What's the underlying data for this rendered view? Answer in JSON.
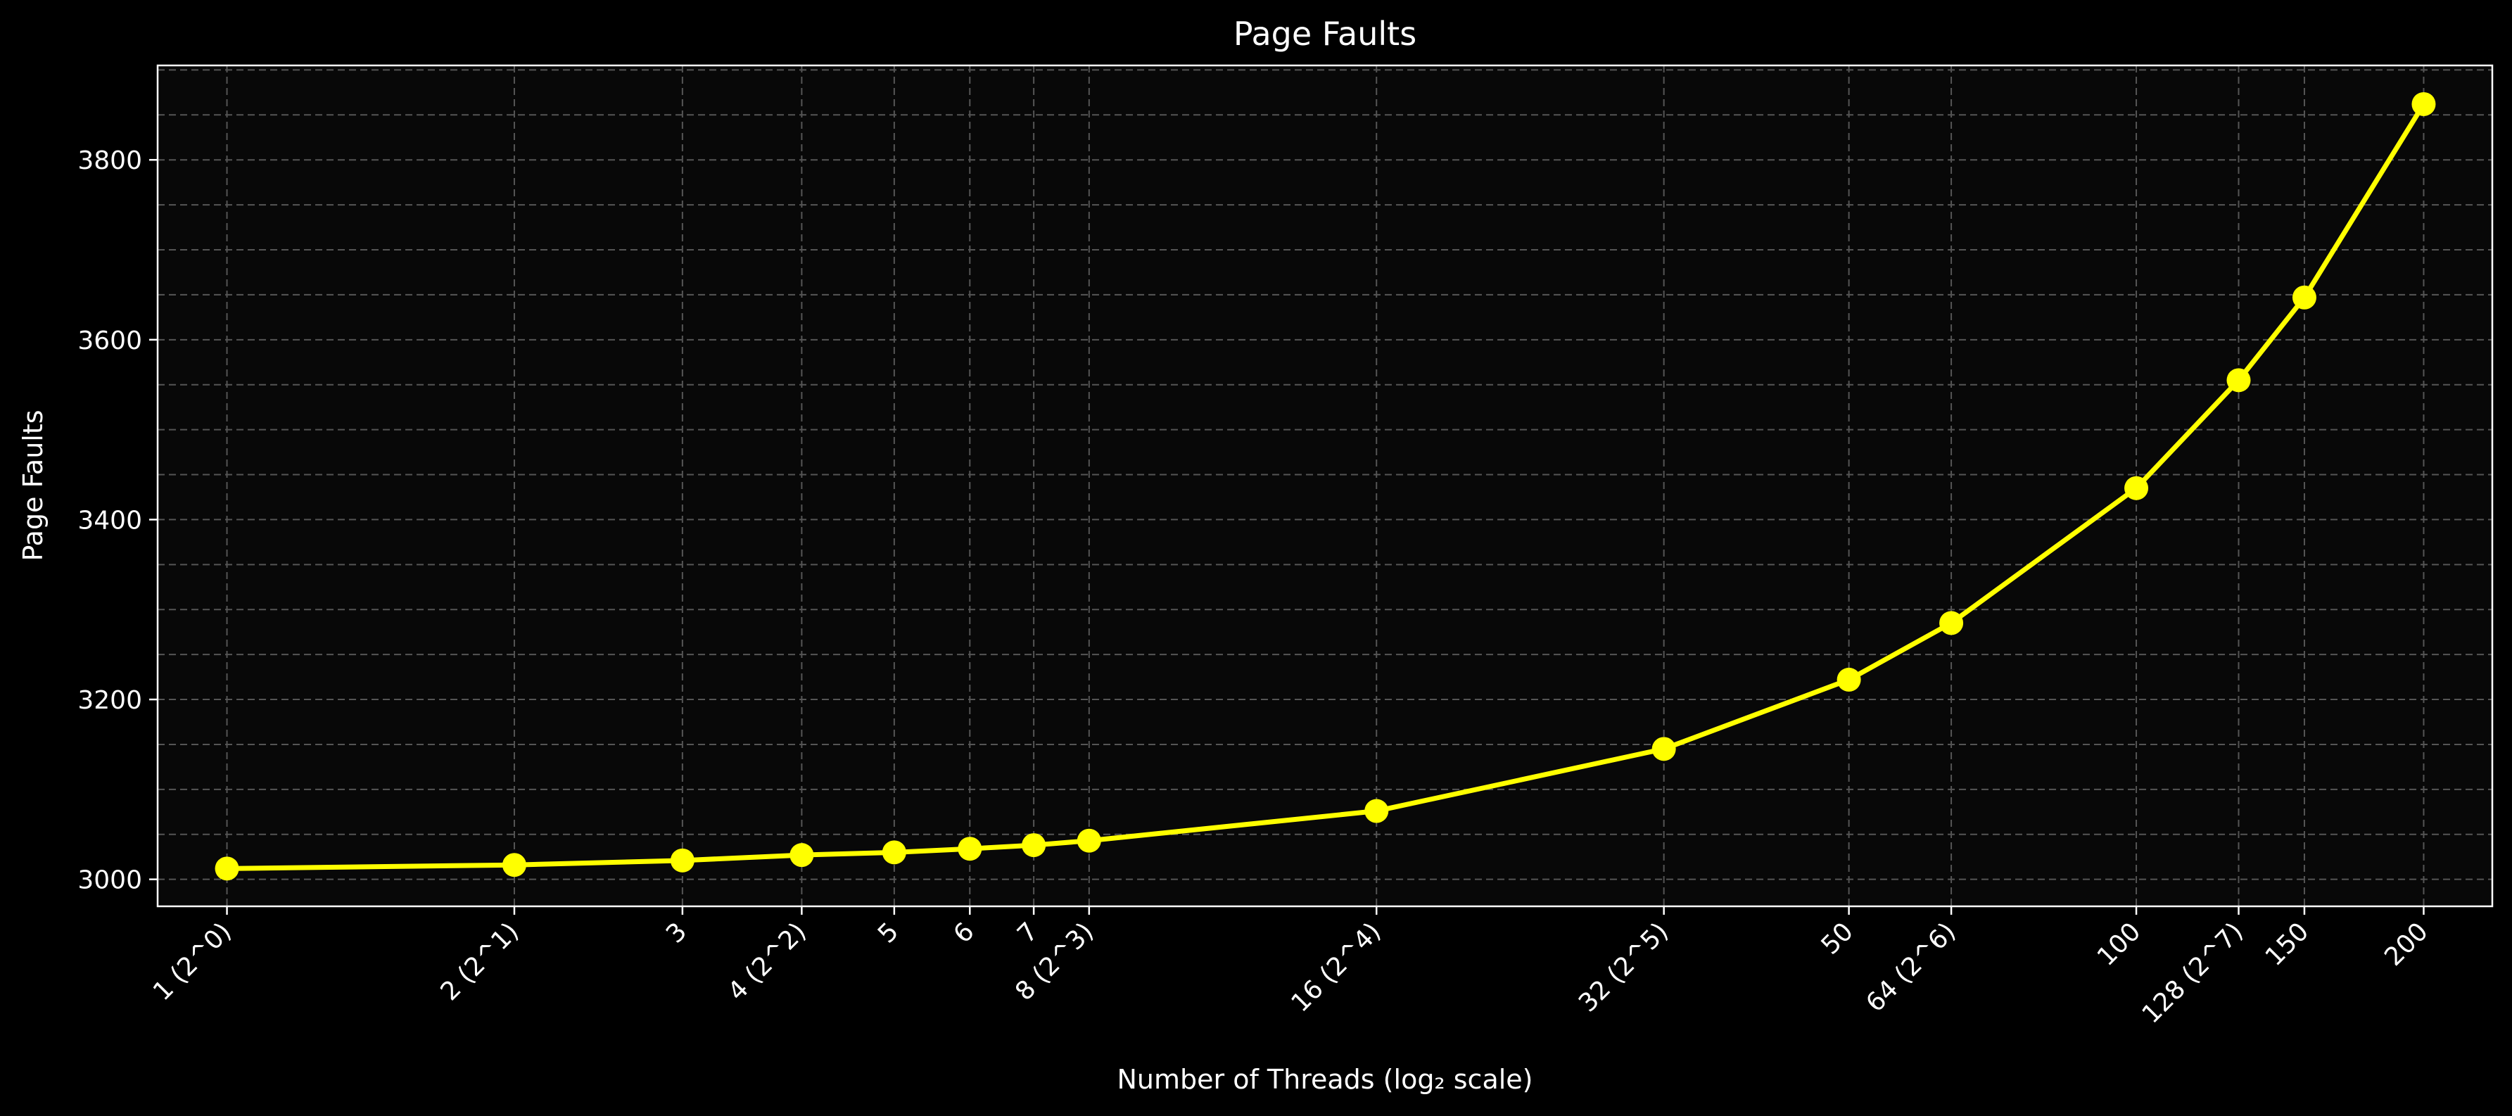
{
  "chart_data": {
    "type": "line",
    "title": "Page Faults",
    "xlabel": "Number of Threads (log₂ scale)",
    "ylabel": "Page Faults",
    "x_scale": "log2",
    "x_tick_labels": [
      "1 (2^0)",
      "2 (2^1)",
      "3",
      "4 (2^2)",
      "5",
      "6",
      "7",
      "8 (2^3)",
      "16 (2^4)",
      "32 (2^5)",
      "50",
      "64 (2^6)",
      "100",
      "128 (2^7)",
      "150",
      "200"
    ],
    "x": [
      1,
      2,
      3,
      4,
      5,
      6,
      7,
      8,
      16,
      32,
      50,
      64,
      100,
      128,
      150,
      200
    ],
    "y_ticks": [
      3000,
      3200,
      3400,
      3600,
      3800
    ],
    "ylim": [
      2970,
      3905
    ],
    "grid": true,
    "series": [
      {
        "values": [
          3012,
          3016,
          3021,
          3027,
          3030,
          3034,
          3038,
          3043,
          3076,
          3145,
          3222,
          3285,
          3435,
          3555,
          3647,
          3862
        ]
      }
    ],
    "colors": {
      "background": "#000000",
      "plot_background": "#080808",
      "line": "#ffff00",
      "axis": "#ffffff",
      "grid": "#555555"
    }
  }
}
